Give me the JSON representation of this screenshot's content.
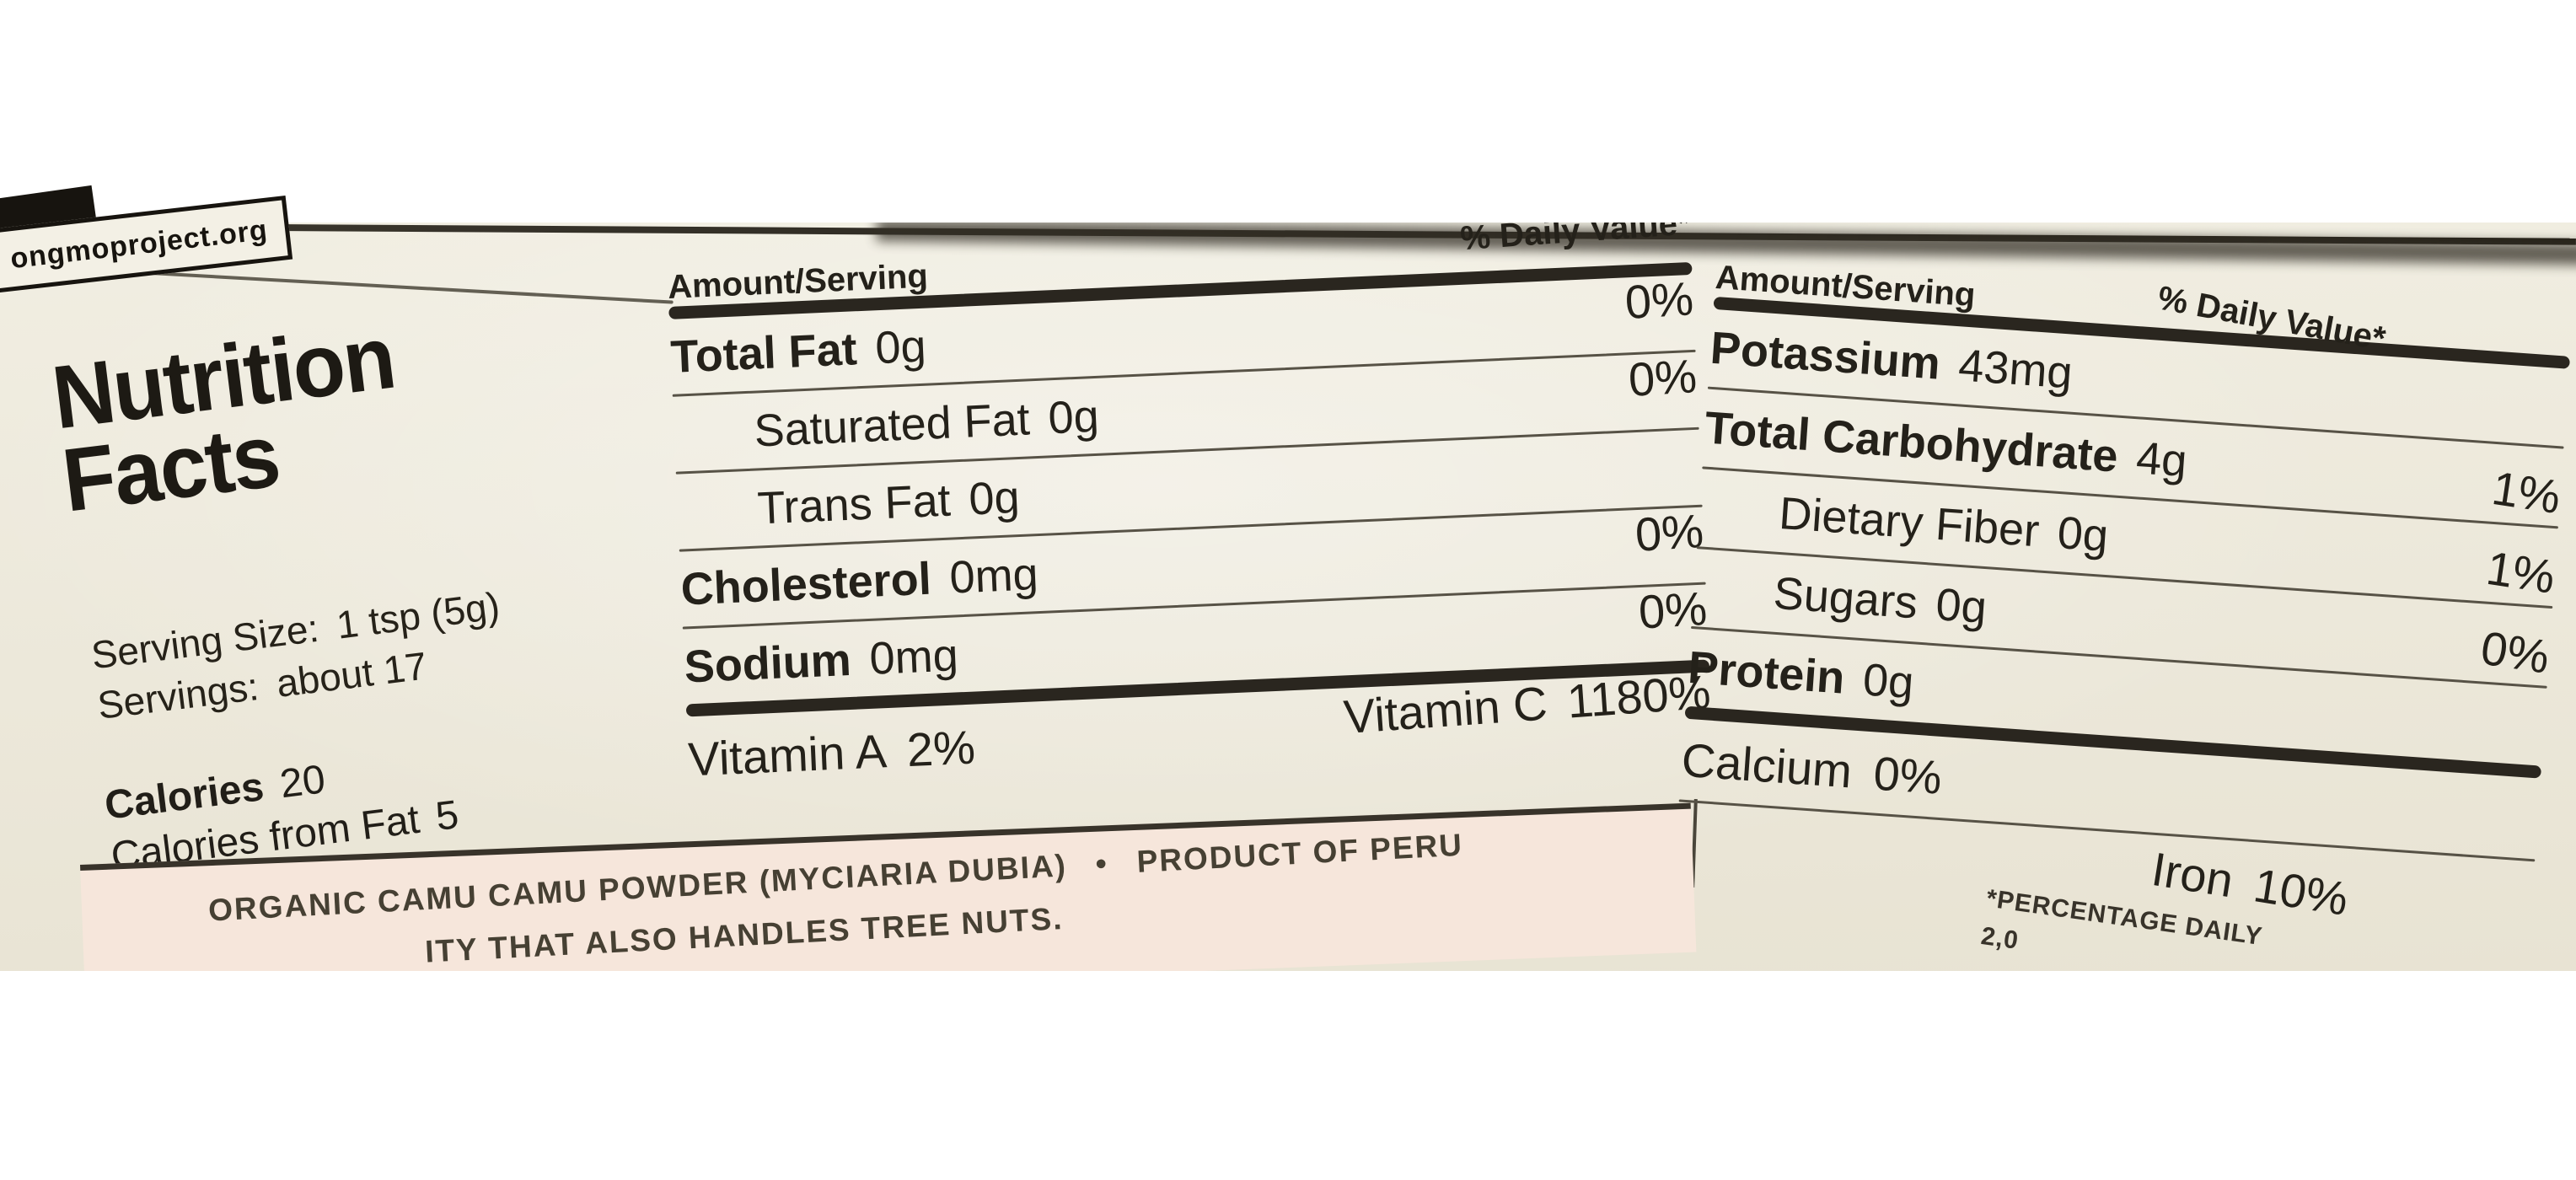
{
  "photo": {
    "stamp": "ongmoproject.org"
  },
  "label": {
    "title_line1": "Nutrition",
    "title_line2": "Facts",
    "serving_size_label": "Serving Size:",
    "serving_size_value": "1 tsp (5g)",
    "servings_label": "Servings:",
    "servings_value": "about 17",
    "calories_label": "Calories",
    "calories_value": "20",
    "calories_from_fat_label": "Calories from Fat",
    "calories_from_fat_value": "5",
    "col_header_amount": "Amount/Serving",
    "col_header_dv": "% Daily Value*",
    "middle": {
      "rows": [
        {
          "label": "Total Fat",
          "amount": "0g",
          "dv": "0%"
        },
        {
          "label": "Saturated Fat",
          "amount": "0g",
          "dv": "0%"
        },
        {
          "label": "Trans Fat",
          "amount": "0g",
          "dv": ""
        },
        {
          "label": "Cholesterol",
          "amount": "0mg",
          "dv": "0%"
        },
        {
          "label": "Sodium",
          "amount": "0mg",
          "dv": "0%"
        }
      ],
      "vitamin_a_label": "Vitamin A",
      "vitamin_a_value": "2%",
      "vitamin_c_label": "Vitamin C",
      "vitamin_c_value": "1180%"
    },
    "right": {
      "rows": [
        {
          "label": "Potassium",
          "amount": "43mg",
          "dv": ""
        },
        {
          "label": "Total Carbohydrate",
          "amount": "4g",
          "dv": "1%"
        },
        {
          "label": "Dietary Fiber",
          "amount": "0g",
          "dv": "1%"
        },
        {
          "label": "Sugars",
          "amount": "0g",
          "dv": "0%"
        },
        {
          "label": "Protein",
          "amount": "0g",
          "dv": ""
        }
      ],
      "calcium_label": "Calcium",
      "calcium_value": "0%",
      "iron_label": "Iron",
      "iron_value": "10%",
      "footnote_line1": "*PERCENTAGE DAILY",
      "footnote_line2": "2,0"
    },
    "ingredients_line1": "ORGANIC CAMU CAMU POWDER (MYCIARIA DUBIA)",
    "ingredients_sep": "•",
    "ingredients_origin": "PRODUCT OF PERU",
    "allergen_line": "ITY THAT ALSO HANDLES TREE NUTS."
  }
}
